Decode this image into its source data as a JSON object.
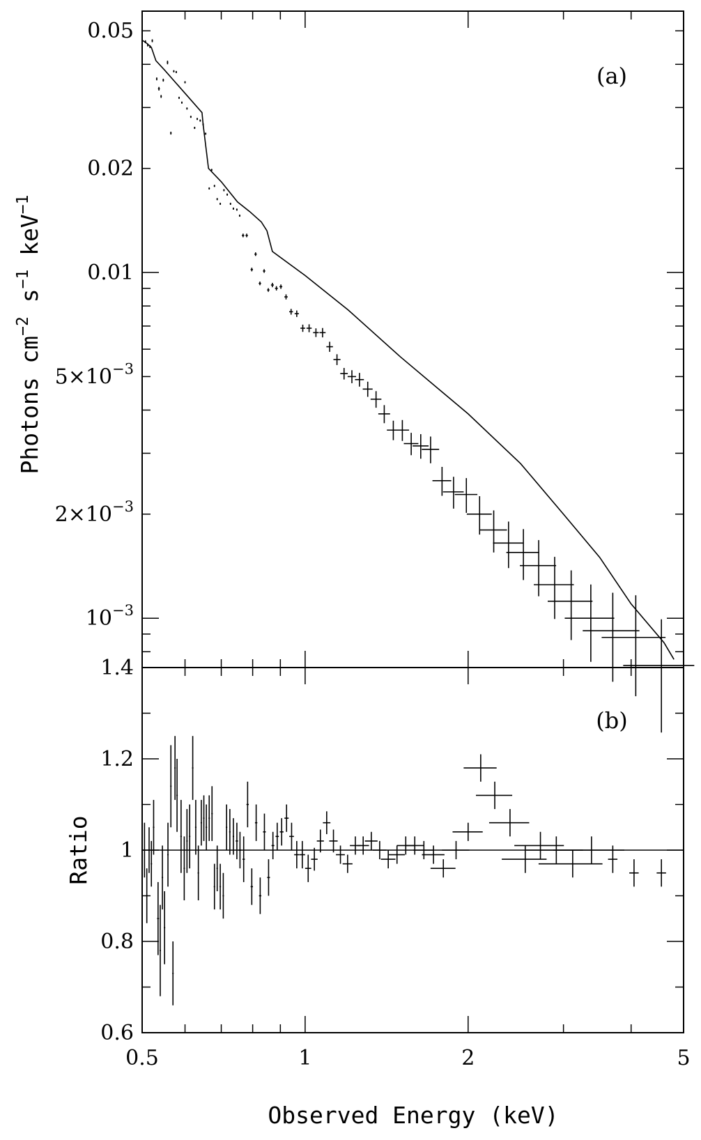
{
  "chart_data": [
    {
      "type": "scatter",
      "panel_label": "(a)",
      "ylabel": "Photons cm^-2 s^-1 keV^-1",
      "ylabel_parts": {
        "base1": "Photons cm",
        "sup1": "−2",
        "base2": " s",
        "sup2": "−1",
        "base3": " keV",
        "sup3": "−1"
      },
      "xscale": "log",
      "yscale": "log",
      "xlim": [
        0.5,
        5
      ],
      "ylim": [
        0.00072,
        0.057
      ],
      "ytick_labels": [
        {
          "value": 0.05,
          "text": "0.05"
        },
        {
          "value": 0.02,
          "text": "0.02"
        },
        {
          "value": 0.01,
          "text": "0.01"
        },
        {
          "value": 0.005,
          "base": "5×10",
          "exp": "−3"
        },
        {
          "value": 0.002,
          "base": "2×10",
          "exp": "−3"
        },
        {
          "value": 0.001,
          "base": "10",
          "exp": "−3"
        }
      ],
      "series": [
        {
          "points": [
            [
              0.507,
              0.0465,
              0.003,
              0.004
            ],
            [
              0.512,
              0.0455,
              0.003,
              0.004
            ],
            [
              0.517,
              0.045,
              0.003,
              0.004
            ],
            [
              0.522,
              0.0468,
              0.003,
              0.004
            ],
            [
              0.532,
              0.0363,
              0.003,
              0.004
            ],
            [
              0.537,
              0.034,
              0.004,
              0.005
            ],
            [
              0.542,
              0.0323,
              0.003,
              0.004
            ],
            [
              0.547,
              0.036,
              0.003,
              0.004
            ],
            [
              0.557,
              0.0405,
              0.003,
              0.005
            ],
            [
              0.565,
              0.0253,
              0.003,
              0.004
            ],
            [
              0.572,
              0.0382,
              0.003,
              0.003
            ],
            [
              0.578,
              0.038,
              0.003,
              0.003
            ],
            [
              0.585,
              0.032,
              0.003,
              0.003
            ],
            [
              0.592,
              0.031,
              0.003,
              0.003
            ],
            [
              0.6,
              0.0355,
              0.003,
              0.003
            ],
            [
              0.605,
              0.0298,
              0.003,
              0.003
            ],
            [
              0.615,
              0.0282,
              0.003,
              0.003
            ],
            [
              0.625,
              0.0262,
              0.003,
              0.003
            ],
            [
              0.632,
              0.0278,
              0.003,
              0.003
            ],
            [
              0.64,
              0.0275,
              0.003,
              0.003
            ],
            [
              0.648,
              0.0268,
              0.003,
              0.003
            ],
            [
              0.655,
              0.0252,
              0.003,
              0.003
            ],
            [
              0.665,
              0.0175,
              0.003,
              0.003
            ],
            [
              0.672,
              0.0198,
              0.003,
              0.003
            ],
            [
              0.68,
              0.0178,
              0.003,
              0.003
            ],
            [
              0.688,
              0.0163,
              0.003,
              0.003
            ],
            [
              0.697,
              0.0158,
              0.003,
              0.003
            ],
            [
              0.708,
              0.0173,
              0.003,
              0.003
            ],
            [
              0.718,
              0.0168,
              0.003,
              0.003
            ],
            [
              0.728,
              0.0158,
              0.003,
              0.003
            ],
            [
              0.737,
              0.0153,
              0.003,
              0.003
            ],
            [
              0.748,
              0.0152,
              0.003,
              0.003
            ],
            [
              0.757,
              0.0146,
              0.003,
              0.003
            ],
            [
              0.768,
              0.0128,
              0.005,
              0.005
            ],
            [
              0.78,
              0.0128,
              0.005,
              0.005
            ],
            [
              0.797,
              0.0102,
              0.005,
              0.005
            ],
            [
              0.81,
              0.0113,
              0.005,
              0.005
            ],
            [
              0.825,
              0.0093,
              0.005,
              0.005
            ],
            [
              0.84,
              0.0101,
              0.005,
              0.005
            ],
            [
              0.855,
              0.0089,
              0.005,
              0.005
            ],
            [
              0.87,
              0.0092,
              0.006,
              0.006
            ],
            [
              0.885,
              0.009,
              0.006,
              0.006
            ],
            [
              0.902,
              0.0091,
              0.006,
              0.006
            ],
            [
              0.922,
              0.0085,
              0.007,
              0.007
            ],
            [
              0.942,
              0.0077,
              0.008,
              0.008
            ],
            [
              0.965,
              0.0076,
              0.009,
              0.009
            ],
            [
              0.99,
              0.0069,
              0.01,
              0.01
            ],
            [
              1.017,
              0.0069,
              0.011,
              0.011
            ],
            [
              1.047,
              0.0067,
              0.012,
              0.012
            ],
            [
              1.077,
              0.0067,
              0.013,
              0.013
            ],
            [
              1.11,
              0.0061,
              0.014,
              0.014
            ],
            [
              1.145,
              0.0056,
              0.015,
              0.015
            ],
            [
              1.18,
              0.0051,
              0.016,
              0.016
            ],
            [
              1.22,
              0.005,
              0.018,
              0.018
            ],
            [
              1.26,
              0.0049,
              0.019,
              0.019
            ],
            [
              1.305,
              0.0046,
              0.021,
              0.021
            ],
            [
              1.352,
              0.0043,
              0.023,
              0.023
            ],
            [
              1.4,
              0.0039,
              0.025,
              0.025
            ],
            [
              1.455,
              0.0035,
              0.027,
              0.027
            ],
            [
              1.512,
              0.0035,
              0.029,
              0.029
            ],
            [
              1.57,
              0.0032,
              0.031,
              0.031
            ],
            [
              1.635,
              0.00315,
              0.034,
              0.034
            ],
            [
              1.705,
              0.00308,
              0.037,
              0.037
            ],
            [
              1.79,
              0.0025,
              0.04,
              0.04
            ],
            [
              1.88,
              0.00232,
              0.044,
              0.044
            ],
            [
              1.985,
              0.00228,
              0.048,
              0.048
            ],
            [
              2.1,
              0.002,
              0.053,
              0.053
            ],
            [
              2.23,
              0.0018,
              0.058,
              0.058
            ],
            [
              2.375,
              0.00165,
              0.064,
              0.064
            ],
            [
              2.53,
              0.00155,
              0.07,
              0.07
            ],
            [
              2.7,
              0.00142,
              0.077,
              0.077
            ],
            [
              2.89,
              0.00125,
              0.085,
              0.085
            ],
            [
              3.1,
              0.00112,
              0.095,
              0.095
            ],
            [
              3.37,
              0.001,
              0.105,
              0.105
            ],
            [
              3.7,
              0.00092,
              0.12,
              0.12
            ],
            [
              4.08,
              0.00088,
              0.135,
              0.135
            ],
            [
              4.55,
              0.00073,
              0.15,
              0.15
            ]
          ]
        }
      ],
      "model_line": [
        [
          0.5,
          0.047
        ],
        [
          0.51,
          0.046
        ],
        [
          0.52,
          0.0448
        ],
        [
          0.53,
          0.041
        ],
        [
          0.55,
          0.0385
        ],
        [
          0.6,
          0.033
        ],
        [
          0.645,
          0.029
        ],
        [
          0.648,
          0.0268
        ],
        [
          0.663,
          0.02
        ],
        [
          0.7,
          0.0183
        ],
        [
          0.75,
          0.016
        ],
        [
          0.79,
          0.015
        ],
        [
          0.83,
          0.014
        ],
        [
          0.85,
          0.0132
        ],
        [
          0.87,
          0.0115
        ],
        [
          1.0,
          0.0098
        ],
        [
          1.2,
          0.0078
        ],
        [
          1.5,
          0.0057
        ],
        [
          2.0,
          0.0039
        ],
        [
          2.5,
          0.0028
        ],
        [
          3.0,
          0.002
        ],
        [
          3.5,
          0.0015
        ],
        [
          4.0,
          0.0011
        ],
        [
          4.6,
          0.00085
        ],
        [
          4.8,
          0.00076
        ]
      ]
    },
    {
      "type": "scatter",
      "panel_label": "(b)",
      "ylabel": "Ratio",
      "xlabel": "Observed Energy (keV)",
      "xscale": "log",
      "xlim": [
        0.5,
        5
      ],
      "ylim": [
        0.6,
        1.4
      ],
      "ytick_labels": [
        {
          "value": 0.6,
          "text": "0.6"
        },
        {
          "value": 0.8,
          "text": "0.8"
        },
        {
          "value": 1.0,
          "text": "1"
        },
        {
          "value": 1.2,
          "text": "1.2"
        },
        {
          "value": 1.4,
          "text": "1.4"
        }
      ],
      "xtick_labels": [
        {
          "value": 0.5,
          "text": "0.5"
        },
        {
          "value": 1,
          "text": "1"
        },
        {
          "value": 2,
          "text": "2"
        },
        {
          "value": 5,
          "text": "5"
        }
      ],
      "reference_y": 1.0,
      "series": [
        {
          "points": [
            [
              0.505,
              1.0,
              0.06
            ],
            [
              0.51,
              0.9,
              0.06
            ],
            [
              0.515,
              1.0,
              0.05
            ],
            [
              0.52,
              0.97,
              0.05
            ],
            [
              0.525,
              1.05,
              0.06
            ],
            [
              0.535,
              0.85,
              0.08
            ],
            [
              0.54,
              0.78,
              0.1
            ],
            [
              0.545,
              0.94,
              0.07
            ],
            [
              0.55,
              0.83,
              0.08
            ],
            [
              0.558,
              0.99,
              0.07
            ],
            [
              0.565,
              1.14,
              0.09
            ],
            [
              0.57,
              0.73,
              0.07
            ],
            [
              0.575,
              1.18,
              0.07
            ],
            [
              0.58,
              1.12,
              0.08
            ],
            [
              0.59,
              1.03,
              0.08
            ],
            [
              0.598,
              0.96,
              0.07
            ],
            [
              0.605,
              1.02,
              0.07
            ],
            [
              0.612,
              1.03,
              0.07
            ],
            [
              0.62,
              1.18,
              0.07
            ],
            [
              0.628,
              1.05,
              0.06
            ],
            [
              0.635,
              0.95,
              0.06
            ],
            [
              0.643,
              1.06,
              0.05
            ],
            [
              0.65,
              1.07,
              0.05
            ],
            [
              0.657,
              1.05,
              0.05
            ],
            [
              0.665,
              1.07,
              0.05
            ],
            [
              0.673,
              1.08,
              0.06
            ],
            [
              0.68,
              0.92,
              0.05
            ],
            [
              0.688,
              0.96,
              0.05
            ],
            [
              0.697,
              0.92,
              0.05
            ],
            [
              0.706,
              0.9,
              0.05
            ],
            [
              0.716,
              1.05,
              0.05
            ],
            [
              0.726,
              1.04,
              0.05
            ],
            [
              0.737,
              1.03,
              0.04
            ],
            [
              0.748,
              1.02,
              0.04
            ],
            [
              0.758,
              1.0,
              0.04
            ],
            [
              0.77,
              0.98,
              0.05
            ],
            [
              0.783,
              1.1,
              0.05
            ],
            [
              0.797,
              0.92,
              0.04
            ],
            [
              0.812,
              1.06,
              0.04
            ],
            [
              0.826,
              0.9,
              0.04
            ],
            [
              0.841,
              1.04,
              0.04
            ],
            [
              0.856,
              0.94,
              0.04
            ],
            [
              0.872,
              1.01,
              0.03
            ],
            [
              0.888,
              1.03,
              0.03
            ],
            [
              0.905,
              1.04,
              0.03
            ],
            [
              0.924,
              1.07,
              0.03
            ],
            [
              0.944,
              1.03,
              0.03
            ],
            [
              0.965,
              0.99,
              0.03
            ],
            [
              0.988,
              0.99,
              0.03
            ],
            [
              1.013,
              0.96,
              0.03
            ],
            [
              1.04,
              0.98,
              0.025
            ],
            [
              1.067,
              1.02,
              0.025
            ],
            [
              1.096,
              1.06,
              0.025
            ],
            [
              1.128,
              1.02,
              0.025
            ],
            [
              1.162,
              0.99,
              0.02
            ],
            [
              1.198,
              0.97,
              0.02
            ],
            [
              1.238,
              1.01,
              0.02
            ],
            [
              1.28,
              1.01,
              0.02
            ],
            [
              1.325,
              1.02,
              0.02
            ],
            [
              1.373,
              1.0,
              0.02
            ],
            [
              1.424,
              0.98,
              0.02
            ],
            [
              1.478,
              0.99,
              0.02
            ],
            [
              1.534,
              1.01,
              0.02
            ],
            [
              1.594,
              1.01,
              0.02
            ],
            [
              1.657,
              1.0,
              0.02
            ],
            [
              1.726,
              0.99,
              0.02
            ],
            [
              1.8,
              0.96,
              0.02
            ],
            [
              1.9,
              1.0,
              0.02
            ],
            [
              2.0,
              1.04,
              0.02
            ],
            [
              2.11,
              1.18,
              0.03
            ],
            [
              2.24,
              1.12,
              0.03
            ],
            [
              2.39,
              1.06,
              0.03
            ],
            [
              2.55,
              0.98,
              0.03
            ],
            [
              2.72,
              1.01,
              0.03
            ],
            [
              2.91,
              1.0,
              0.03
            ],
            [
              3.12,
              0.97,
              0.03
            ],
            [
              3.38,
              1.0,
              0.03
            ],
            [
              3.7,
              0.98,
              0.03
            ],
            [
              4.05,
              0.95,
              0.03
            ],
            [
              4.55,
              0.95,
              0.03
            ]
          ]
        }
      ]
    }
  ]
}
